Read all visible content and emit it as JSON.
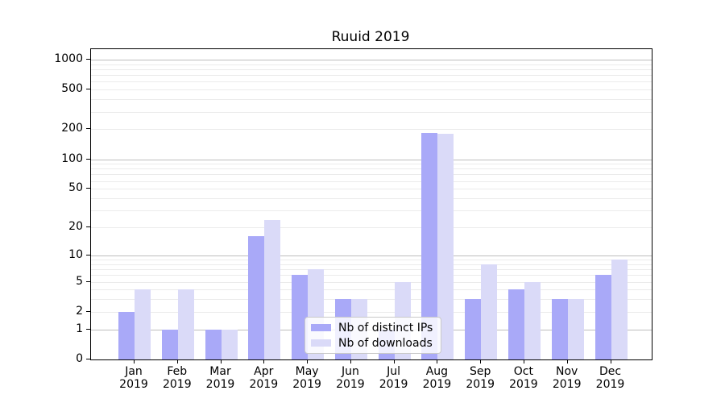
{
  "chart_data": {
    "type": "bar",
    "title": "Ruuid 2019",
    "categories": [
      [
        "Jan",
        "2019"
      ],
      [
        "Feb",
        "2019"
      ],
      [
        "Mar",
        "2019"
      ],
      [
        "Apr",
        "2019"
      ],
      [
        "May",
        "2019"
      ],
      [
        "Jun",
        "2019"
      ],
      [
        "Jul",
        "2019"
      ],
      [
        "Aug",
        "2019"
      ],
      [
        "Sep",
        "2019"
      ],
      [
        "Oct",
        "2019"
      ],
      [
        "Nov",
        "2019"
      ],
      [
        "Dec",
        "2019"
      ]
    ],
    "series": [
      {
        "name": "Nb of distinct IPs",
        "color": "#a9a9f8",
        "values": [
          2,
          1,
          1,
          16,
          6,
          3,
          1,
          183,
          3,
          4,
          3,
          6
        ]
      },
      {
        "name": "Nb of downloads",
        "color": "#dadaf8",
        "values": [
          4,
          4,
          1,
          24,
          7,
          3,
          5,
          180,
          8,
          5,
          3,
          9
        ]
      }
    ],
    "y_axis": {
      "scale": "log1p",
      "min": 0,
      "max": 1272,
      "tick_values": [
        0,
        1,
        2,
        5,
        10,
        20,
        50,
        100,
        200,
        500,
        1000
      ],
      "tick_labels": [
        "0",
        "1",
        "2",
        "5",
        "10",
        "20",
        "50",
        "100",
        "200",
        "500",
        "1000"
      ],
      "major_grid": [
        1,
        10,
        100,
        1000
      ],
      "minor_grid": [
        2,
        3,
        4,
        5,
        6,
        7,
        8,
        9,
        20,
        30,
        40,
        50,
        60,
        70,
        80,
        90,
        200,
        300,
        400,
        500,
        600,
        700,
        800,
        900
      ]
    },
    "legend": {
      "position": "lower center",
      "entries": [
        "Nb of distinct IPs",
        "Nb of downloads"
      ]
    },
    "grid": "on",
    "colors": {
      "major_grid": "#bdbdbd",
      "minor_grid": "#ebebeb",
      "spine": "#000000",
      "text": "#000000",
      "legend_border": "#c9c9c9",
      "legend_background": "#ffffff"
    }
  }
}
